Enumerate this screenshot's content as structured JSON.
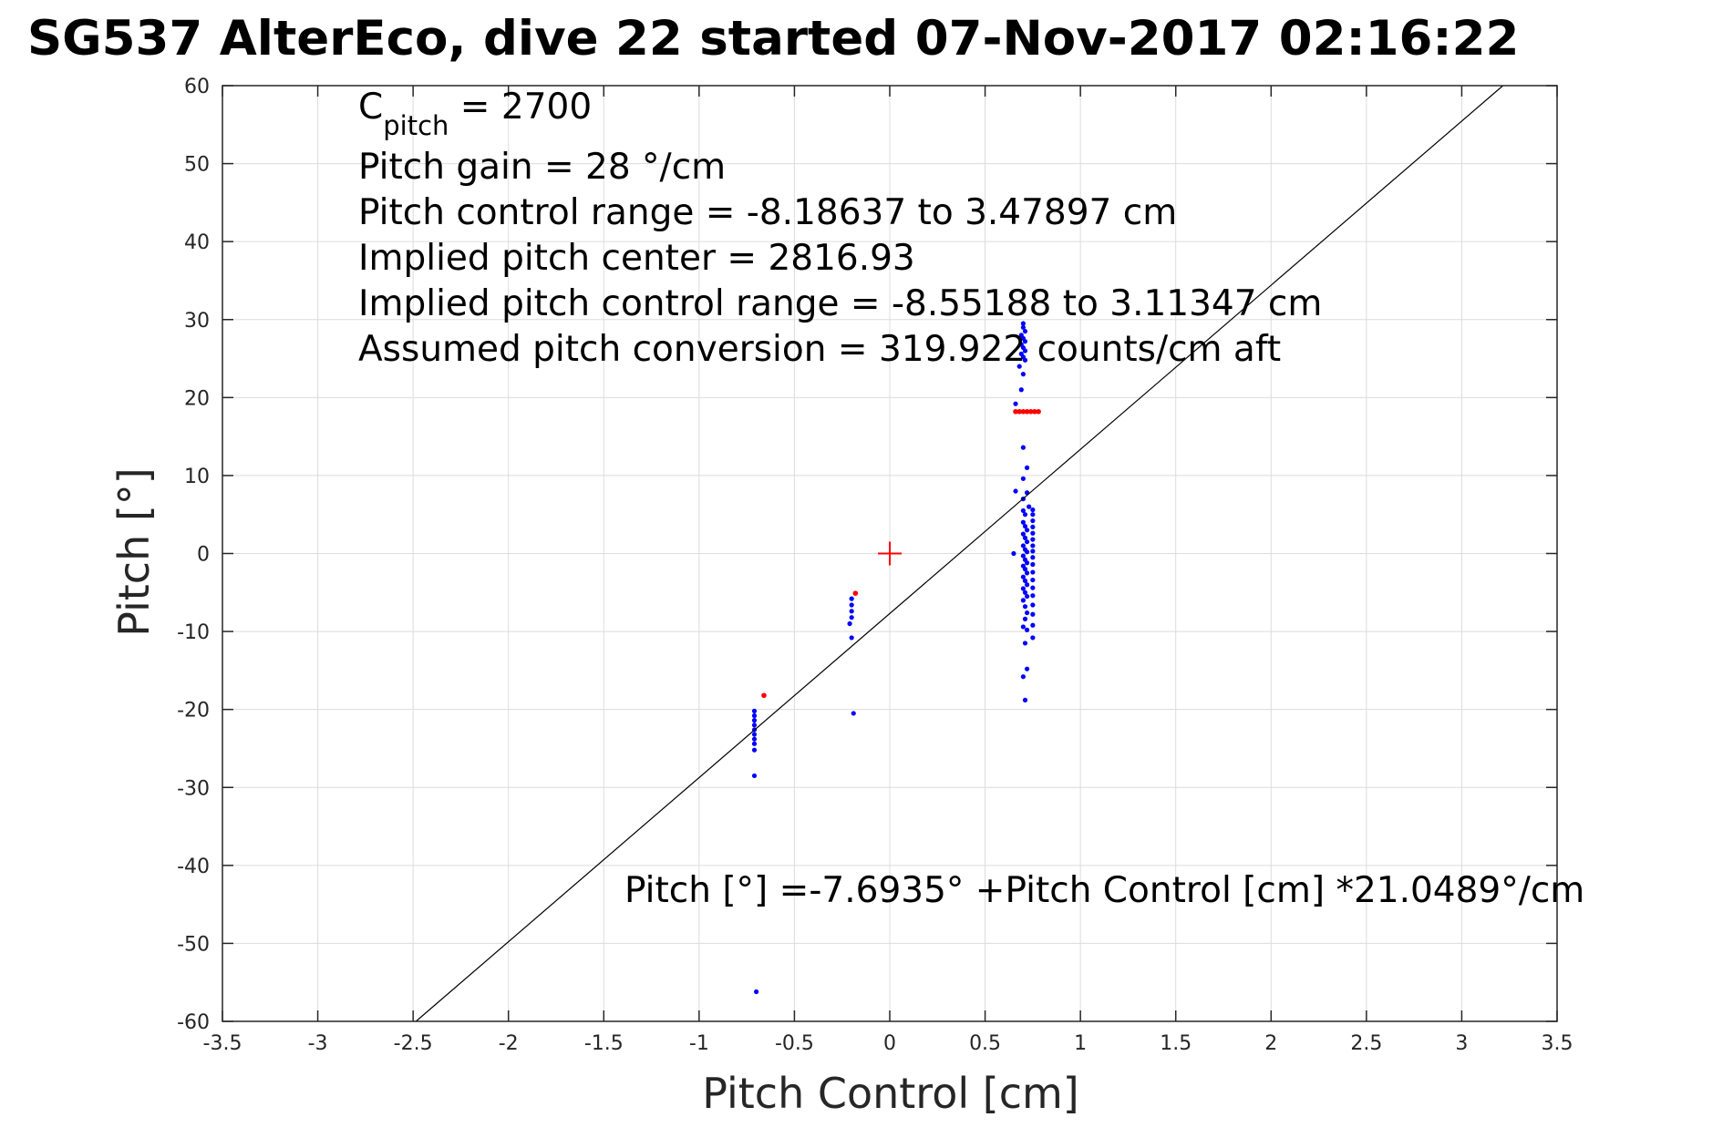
{
  "chart_data": {
    "type": "scatter",
    "title": "SG537 AlterEco, dive 22 started 07-Nov-2017 02:16:22",
    "xlabel": "Pitch Control [cm]",
    "ylabel": "Pitch [°]",
    "xlim": [
      -3.5,
      3.5
    ],
    "ylim": [
      -60,
      60
    ],
    "xticks": [
      -3.5,
      -3,
      -2.5,
      -2,
      -1.5,
      -1,
      -0.5,
      0,
      0.5,
      1,
      1.5,
      2,
      2.5,
      3,
      3.5
    ],
    "yticks": [
      -60,
      -50,
      -40,
      -30,
      -20,
      -10,
      0,
      10,
      20,
      30,
      40,
      50,
      60
    ],
    "grid": true,
    "colors": {
      "fit": "#000000",
      "points": "#0000ff",
      "flagged": "#ff0000",
      "center": "#ff0000"
    },
    "fit_line": {
      "intercept": -7.6935,
      "slope": 21.0489
    },
    "center_marker": {
      "x": 0,
      "y": 0
    },
    "annotations": {
      "c_pitch_label": "C",
      "c_pitch_sub": "pitch",
      "c_pitch_value": " = 2700",
      "lines": [
        "Pitch gain = 28 °/cm",
        "Pitch control range = -8.18637 to 3.47897 cm",
        "Implied pitch center = 2816.93",
        "Implied pitch control range = -8.55188 to 3.11347 cm",
        "Assumed pitch conversion = 319.922 counts/cm aft"
      ],
      "fit_equation": "Pitch [°] =-7.6935° +Pitch Control [cm] *21.0489°/cm"
    },
    "series": [
      {
        "points": [
          [
            0.7,
            29.5
          ],
          [
            0.7,
            29.0
          ],
          [
            0.71,
            28.5
          ],
          [
            0.69,
            28.0
          ],
          [
            0.7,
            27.6
          ],
          [
            0.71,
            27.2
          ],
          [
            0.69,
            26.8
          ],
          [
            0.7,
            26.4
          ],
          [
            0.71,
            26.0
          ],
          [
            0.69,
            25.6
          ],
          [
            0.7,
            25.2
          ],
          [
            0.71,
            24.8
          ],
          [
            0.68,
            24.0
          ],
          [
            0.7,
            23.0
          ],
          [
            0.69,
            21.0
          ],
          [
            0.66,
            19.2
          ],
          [
            0.7,
            13.6
          ],
          [
            0.72,
            11.0
          ],
          [
            0.7,
            9.6
          ],
          [
            0.72,
            7.8
          ],
          [
            0.66,
            8.0
          ],
          [
            0.7,
            7.0
          ],
          [
            0.73,
            6.0
          ],
          [
            0.7,
            5.5
          ],
          [
            0.71,
            5.0
          ],
          [
            0.75,
            5.6
          ],
          [
            0.75,
            5.0
          ],
          [
            0.75,
            4.2
          ],
          [
            0.75,
            3.4
          ],
          [
            0.7,
            4.0
          ],
          [
            0.71,
            3.5
          ],
          [
            0.72,
            3.0
          ],
          [
            0.7,
            2.5
          ],
          [
            0.71,
            2.0
          ],
          [
            0.72,
            1.5
          ],
          [
            0.7,
            1.0
          ],
          [
            0.71,
            0.5
          ],
          [
            0.72,
            0.2
          ],
          [
            0.65,
            0.0
          ],
          [
            0.7,
            -0.3
          ],
          [
            0.71,
            -0.8
          ],
          [
            0.72,
            -1.2
          ],
          [
            0.7,
            -1.6
          ],
          [
            0.71,
            -2.0
          ],
          [
            0.72,
            -2.5
          ],
          [
            0.7,
            -3.0
          ],
          [
            0.71,
            -3.5
          ],
          [
            0.72,
            -4.0
          ],
          [
            0.7,
            -4.5
          ],
          [
            0.71,
            -5.0
          ],
          [
            0.72,
            -5.5
          ],
          [
            0.7,
            -6.0
          ],
          [
            0.75,
            2.6
          ],
          [
            0.75,
            1.8
          ],
          [
            0.75,
            1.0
          ],
          [
            0.75,
            0.3
          ],
          [
            0.75,
            -0.5
          ],
          [
            0.75,
            -1.4
          ],
          [
            0.75,
            -2.4
          ],
          [
            0.75,
            -3.4
          ],
          [
            0.75,
            -4.4
          ],
          [
            0.75,
            -5.4
          ],
          [
            0.75,
            -6.6
          ],
          [
            0.75,
            -7.8
          ],
          [
            0.75,
            -9.2
          ],
          [
            0.75,
            -10.8
          ],
          [
            0.71,
            -6.8
          ],
          [
            0.72,
            -7.6
          ],
          [
            0.71,
            -8.4
          ],
          [
            0.7,
            -9.4
          ],
          [
            0.72,
            -9.8
          ],
          [
            0.71,
            -11.5
          ],
          [
            0.72,
            -14.8
          ],
          [
            0.7,
            -15.8
          ],
          [
            0.71,
            -18.8
          ],
          [
            -0.2,
            -5.8
          ],
          [
            -0.2,
            -6.6
          ],
          [
            -0.2,
            -7.4
          ],
          [
            -0.2,
            -8.2
          ],
          [
            -0.21,
            -9.0
          ],
          [
            -0.2,
            -10.8
          ],
          [
            -0.19,
            -20.5
          ],
          [
            -0.71,
            -20.2
          ],
          [
            -0.71,
            -20.8
          ],
          [
            -0.71,
            -21.4
          ],
          [
            -0.71,
            -22.0
          ],
          [
            -0.71,
            -22.6
          ],
          [
            -0.71,
            -23.2
          ],
          [
            -0.71,
            -23.8
          ],
          [
            -0.71,
            -24.4
          ],
          [
            -0.71,
            -25.2
          ],
          [
            -0.71,
            -28.5
          ],
          [
            -0.7,
            -56.2
          ]
        ]
      },
      {
        "points": [
          [
            -0.18,
            -5.1
          ],
          [
            -0.66,
            -18.2
          ],
          [
            0.66,
            18.2
          ],
          [
            0.68,
            18.2
          ],
          [
            0.7,
            18.2
          ],
          [
            0.72,
            18.2
          ],
          [
            0.74,
            18.2
          ],
          [
            0.76,
            18.2
          ],
          [
            0.78,
            18.2
          ]
        ]
      }
    ]
  }
}
